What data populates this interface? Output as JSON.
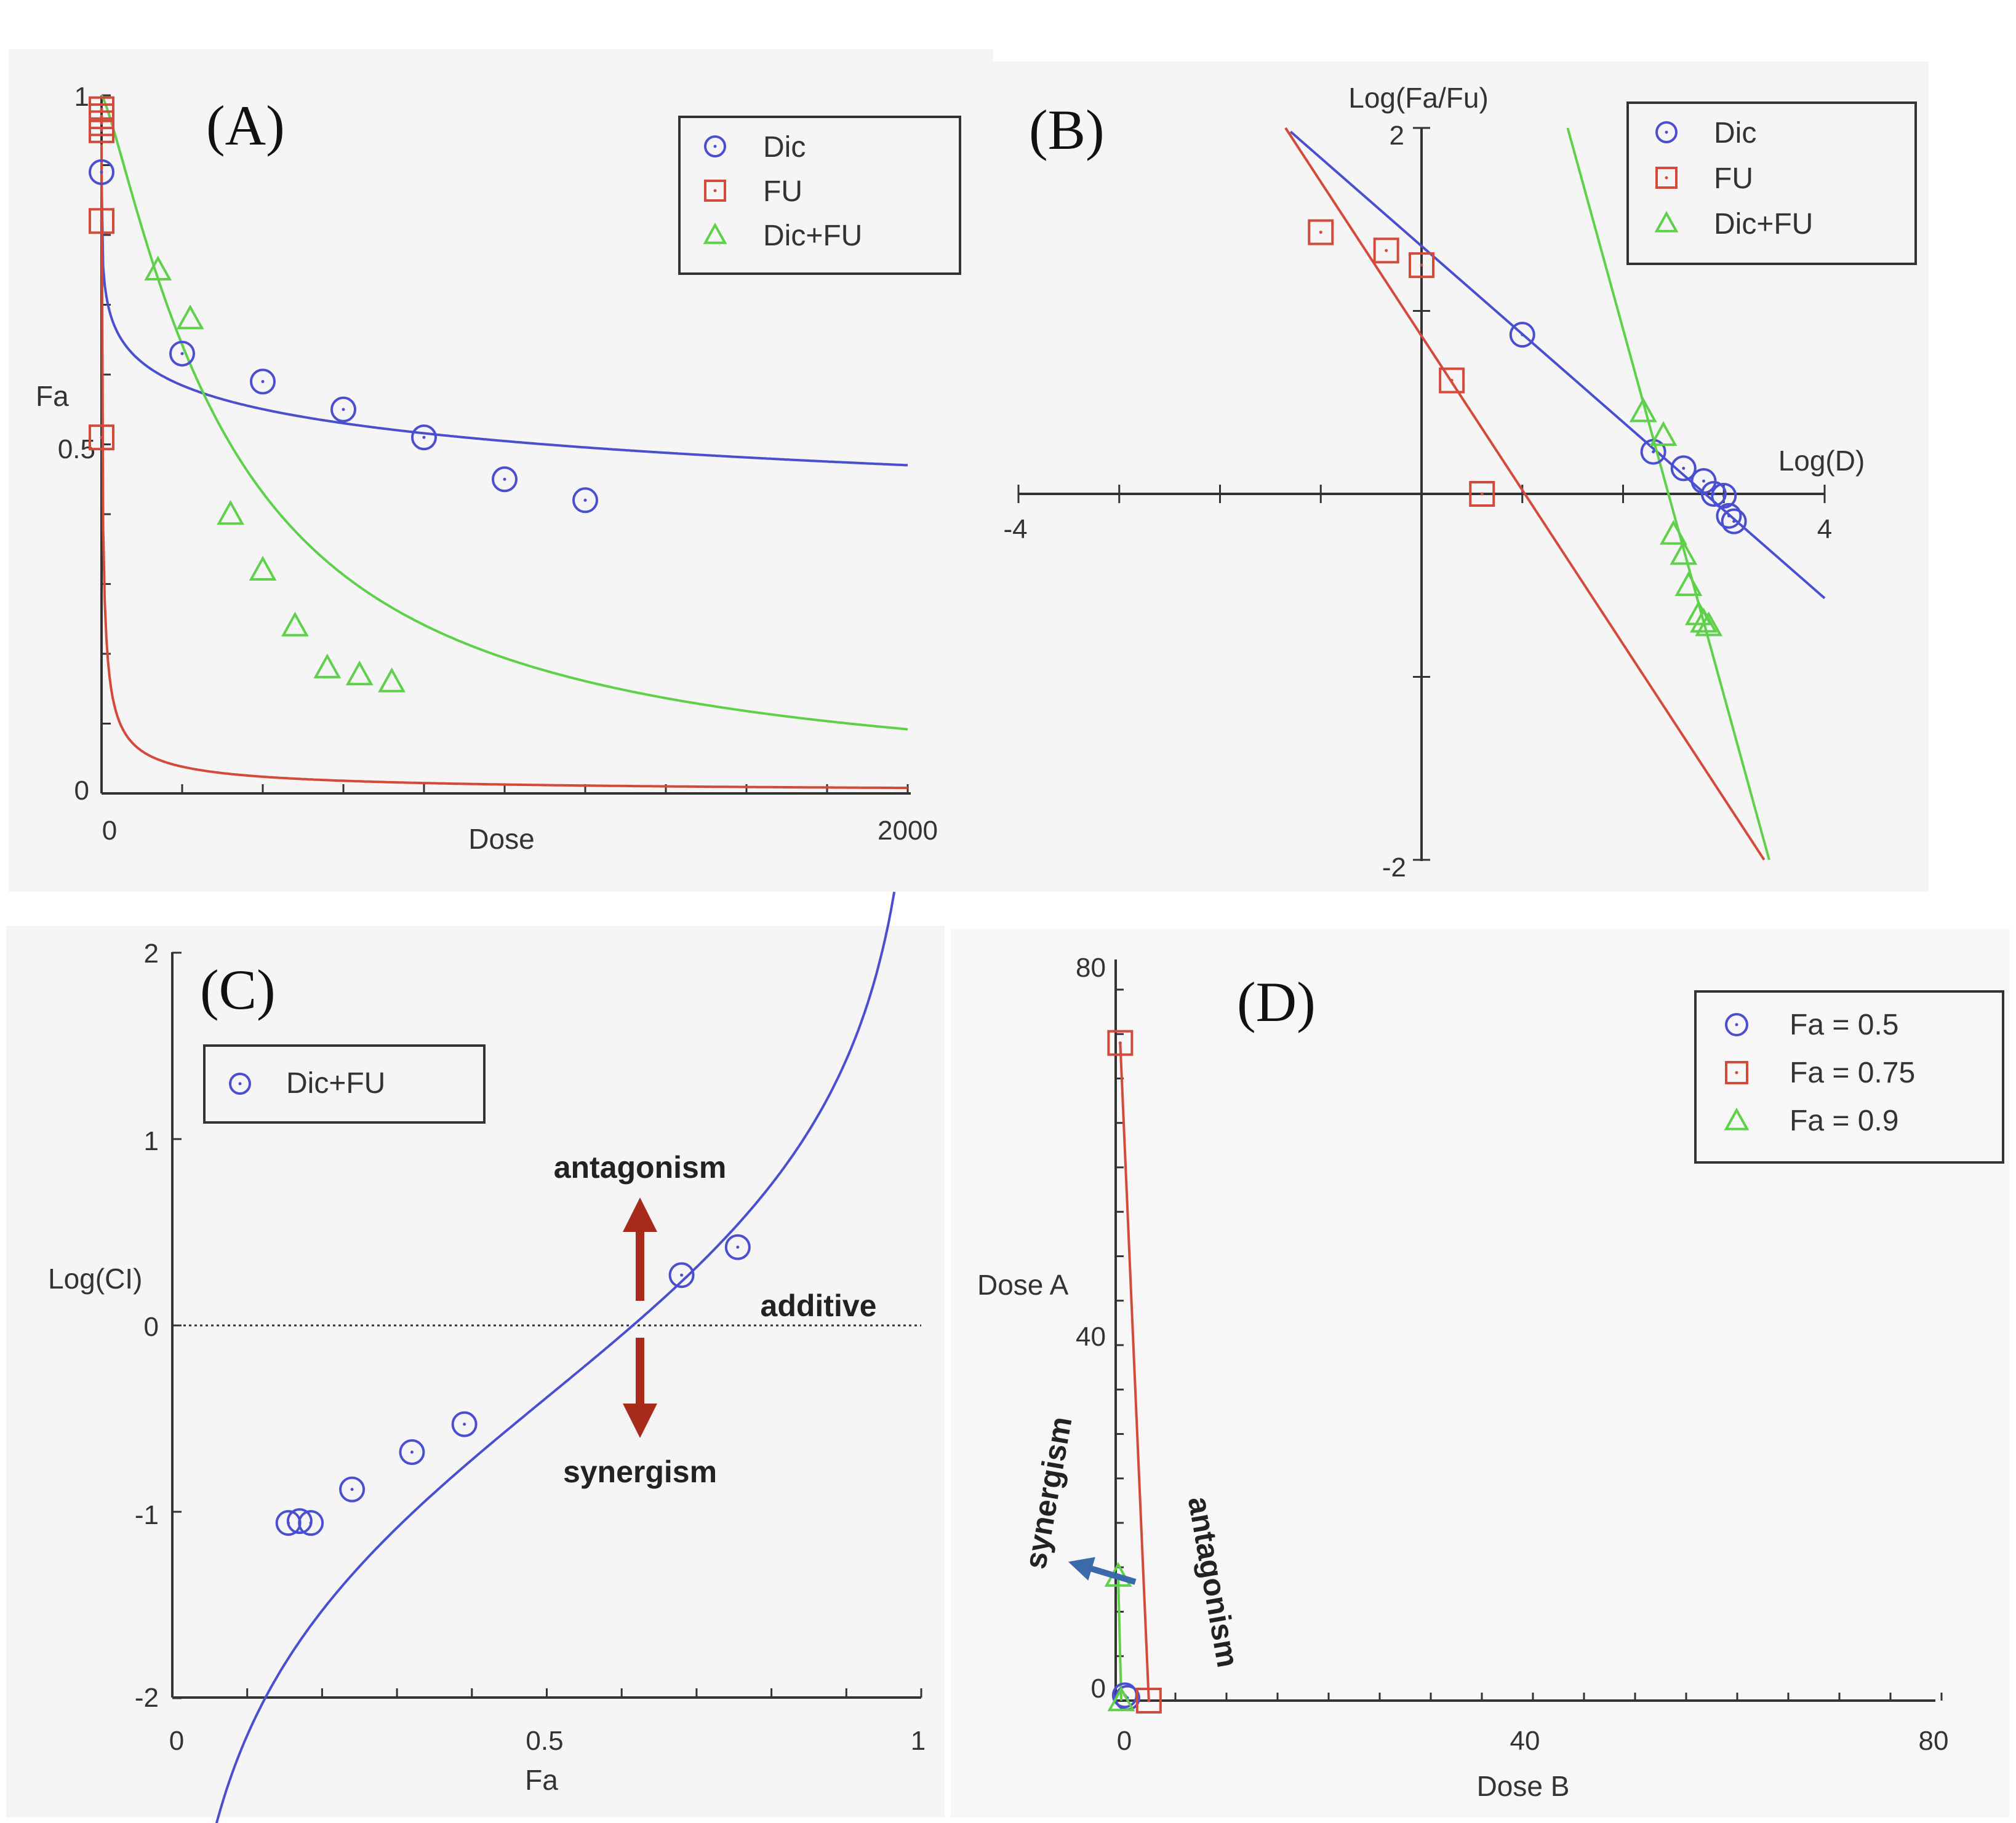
{
  "colors": {
    "blue": "#4a4fd0",
    "red": "#d44a3a",
    "green": "#5fd04a",
    "darkred": "#a82a1a",
    "arrowblue": "#3a6aaa"
  },
  "chart_data": [
    {
      "id": "A",
      "type": "scatter",
      "panel_label": "(A)",
      "xlabel": "Dose",
      "ylabel": "Fa",
      "xlim": [
        0,
        2000
      ],
      "ylim": [
        0,
        1
      ],
      "x_ticks": [
        "0",
        "2000"
      ],
      "y_ticks": [
        "0",
        "0.5",
        "1"
      ],
      "series": [
        {
          "name": "Dic",
          "marker": "circle",
          "color": "#4a4fd0",
          "points": [
            [
              0,
              0.89
            ],
            [
              200,
              0.63
            ],
            [
              400,
              0.59
            ],
            [
              600,
              0.55
            ],
            [
              800,
              0.51
            ],
            [
              1000,
              0.45
            ],
            [
              1200,
              0.42
            ]
          ],
          "curve_dm": 1100,
          "curve_m": 0.2
        },
        {
          "name": "FU",
          "marker": "square",
          "color": "#d44a3a",
          "points": [
            [
              0,
              0.95
            ],
            [
              0,
              0.96
            ],
            [
              0,
              0.97
            ],
            [
              0,
              0.98
            ],
            [
              0,
              0.82
            ],
            [
              0,
              0.51
            ]
          ],
          "curve_dm": 2,
          "curve_m": 0.7
        },
        {
          "name": "Dic+FU",
          "marker": "triangle",
          "color": "#5fd04a",
          "points": [
            [
              140,
              0.75
            ],
            [
              220,
              0.68
            ],
            [
              320,
              0.4
            ],
            [
              400,
              0.32
            ],
            [
              480,
              0.24
            ],
            [
              560,
              0.18
            ],
            [
              640,
              0.17
            ],
            [
              720,
              0.16
            ]
          ],
          "curve_dm": 320,
          "curve_m": 1.25
        }
      ],
      "legend": "top-right"
    },
    {
      "id": "B",
      "type": "scatter",
      "panel_label": "(B)",
      "xlabel": "Log(D)",
      "ylabel": "Log(Fa/Fu)",
      "xlim": [
        -4,
        4
      ],
      "ylim": [
        -2,
        2
      ],
      "x_ticks": [
        "-4",
        "4"
      ],
      "y_ticks": [
        "2",
        "-2"
      ],
      "series": [
        {
          "name": "Dic",
          "marker": "circle",
          "color": "#4a4fd0",
          "points": [
            [
              1.0,
              0.87
            ],
            [
              2.3,
              0.23
            ],
            [
              2.6,
              0.14
            ],
            [
              2.8,
              0.07
            ],
            [
              2.9,
              0.0
            ],
            [
              3.0,
              -0.01
            ],
            [
              3.05,
              -0.12
            ],
            [
              3.1,
              -0.15
            ]
          ],
          "line": [
            [
              -1.3,
              1.98
            ],
            [
              4.0,
              -0.57
            ]
          ]
        },
        {
          "name": "FU",
          "marker": "square",
          "color": "#d44a3a",
          "points": [
            [
              -1.0,
              1.43
            ],
            [
              -0.35,
              1.33
            ],
            [
              0.0,
              1.25
            ],
            [
              0.3,
              0.62
            ],
            [
              0.6,
              0.0
            ]
          ],
          "line": [
            [
              -1.35,
              2.0
            ],
            [
              3.4,
              -2.0
            ]
          ]
        },
        {
          "name": "Dic+FU",
          "marker": "triangle",
          "color": "#5fd04a",
          "points": [
            [
              2.2,
              0.45
            ],
            [
              2.4,
              0.32
            ],
            [
              2.5,
              -0.22
            ],
            [
              2.6,
              -0.33
            ],
            [
              2.65,
              -0.5
            ],
            [
              2.75,
              -0.66
            ],
            [
              2.8,
              -0.7
            ],
            [
              2.85,
              -0.72
            ]
          ],
          "line": [
            [
              1.45,
              2.0
            ],
            [
              3.45,
              -2.0
            ]
          ]
        }
      ],
      "legend": "top-right"
    },
    {
      "id": "C",
      "type": "scatter",
      "panel_label": "(C)",
      "xlabel": "Fa",
      "ylabel": "Log(CI)",
      "xlim": [
        0,
        1
      ],
      "ylim": [
        -2,
        2
      ],
      "x_ticks": [
        "0",
        "0.5",
        "1"
      ],
      "y_ticks": [
        "2",
        "1",
        "0",
        "-1",
        "-2"
      ],
      "series": [
        {
          "name": "Dic+FU",
          "marker": "circle",
          "color": "#4a4fd0",
          "points": [
            [
              0.155,
              -1.06
            ],
            [
              0.17,
              -1.05
            ],
            [
              0.185,
              -1.06
            ],
            [
              0.24,
              -0.88
            ],
            [
              0.32,
              -0.68
            ],
            [
              0.39,
              -0.53
            ],
            [
              0.68,
              0.27
            ],
            [
              0.755,
              0.42
            ]
          ]
        }
      ],
      "reference_line": {
        "y": 0,
        "label": "additive"
      },
      "annotations": {
        "up": "antagonism",
        "down": "synergism"
      },
      "legend": "top-left"
    },
    {
      "id": "D",
      "type": "scatter",
      "panel_label": "(D)",
      "xlabel": "Dose B",
      "ylabel": "Dose A",
      "xlim": [
        0,
        80
      ],
      "ylim": [
        0,
        80
      ],
      "x_ticks": [
        "0",
        "40",
        "80"
      ],
      "y_ticks": [
        "80",
        "40",
        "0"
      ],
      "series": [
        {
          "name": "Fa = 0.5",
          "marker": "circle",
          "color": "#4a4fd0",
          "points": [
            [
              0.3,
              0.3
            ],
            [
              0.05,
              0.6
            ]
          ]
        },
        {
          "name": "Fa = 0.75",
          "marker": "square",
          "color": "#d44a3a",
          "points": [
            [
              -0.4,
              74
            ],
            [
              2.4,
              0
            ]
          ]
        },
        {
          "name": "Fa = 0.9",
          "marker": "triangle",
          "color": "#5fd04a",
          "points": [
            [
              -0.6,
              14
            ],
            [
              -0.3,
              0
            ]
          ]
        }
      ],
      "annotations": {
        "left": "synergism",
        "right": "antagonism"
      },
      "legend": "top-right"
    }
  ]
}
